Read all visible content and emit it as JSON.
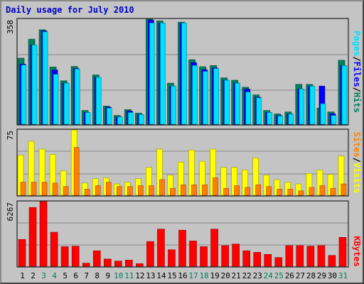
{
  "title": "Daily usage for July 2010",
  "colors": {
    "hits": "#00805c",
    "files": "#0000ff",
    "pages": "#00e0ff",
    "visits": "#ffff00",
    "sites": "#ff8000",
    "kbytes": "#ff0000",
    "weekend_day": "#00805c",
    "weekday": "#000000",
    "background": "#c4c4c4",
    "gridline": "#888888"
  },
  "side_labels": {
    "top": [
      "Pages",
      "/",
      "Files",
      "/",
      "Hits"
    ],
    "middle": [
      "Sites",
      "/",
      "Visits"
    ],
    "bottom": [
      "KBytes"
    ]
  },
  "chart_data": [
    {
      "type": "bar",
      "panel": "hits_files_pages",
      "categories": [
        "1",
        "2",
        "3",
        "4",
        "5",
        "6",
        "7",
        "8",
        "9",
        "10",
        "11",
        "12",
        "13",
        "14",
        "15",
        "16",
        "17",
        "18",
        "19",
        "20",
        "21",
        "22",
        "23",
        "24",
        "25",
        "26",
        "27",
        "28",
        "29",
        "30",
        "31"
      ],
      "ylim": [
        0,
        358
      ],
      "ytick_label": "358",
      "series": [
        {
          "name": "Hits",
          "values": [
            225,
            290,
            322,
            195,
            148,
            197,
            47,
            168,
            62,
            30,
            50,
            38,
            358,
            352,
            140,
            348,
            220,
            196,
            200,
            158,
            150,
            126,
            100,
            47,
            35,
            42,
            136,
            136,
            55,
            42,
            218
          ]
        },
        {
          "name": "Files",
          "values": [
            205,
            270,
            318,
            185,
            140,
            190,
            40,
            160,
            58,
            25,
            45,
            33,
            355,
            345,
            130,
            344,
            210,
            186,
            192,
            150,
            140,
            120,
            92,
            40,
            30,
            35,
            120,
            130,
            130,
            36,
            200
          ]
        },
        {
          "name": "Pages",
          "values": [
            202,
            270,
            315,
            170,
            140,
            188,
            40,
            160,
            55,
            25,
            40,
            33,
            345,
            345,
            130,
            345,
            200,
            180,
            190,
            150,
            140,
            110,
            90,
            40,
            28,
            35,
            120,
            130,
            70,
            30,
            200
          ]
        }
      ]
    },
    {
      "type": "bar",
      "panel": "visits_sites",
      "categories": [
        "1",
        "2",
        "3",
        "4",
        "5",
        "6",
        "7",
        "8",
        "9",
        "10",
        "11",
        "12",
        "13",
        "14",
        "15",
        "16",
        "17",
        "18",
        "19",
        "20",
        "21",
        "22",
        "23",
        "24",
        "25",
        "26",
        "27",
        "28",
        "29",
        "30",
        "31"
      ],
      "ylim": [
        0,
        75
      ],
      "ytick_label": "75",
      "series": [
        {
          "name": "Visits",
          "values": [
            46,
            62,
            53,
            47,
            28,
            75,
            14,
            19,
            20,
            13,
            15,
            19,
            32,
            53,
            23,
            38,
            52,
            39,
            53,
            32,
            32,
            29,
            43,
            23,
            18,
            15,
            13,
            25,
            29,
            24,
            45
          ]
        },
        {
          "name": "Sites",
          "values": [
            15,
            15,
            15,
            14,
            10,
            55,
            7,
            11,
            15,
            10,
            10,
            11,
            11,
            18,
            8,
            12,
            12,
            12,
            20,
            8,
            11,
            9,
            12,
            10,
            7,
            7,
            5,
            9,
            11,
            8,
            13
          ]
        }
      ]
    },
    {
      "type": "bar",
      "panel": "kbytes",
      "categories": [
        "1",
        "2",
        "3",
        "4",
        "5",
        "6",
        "7",
        "8",
        "9",
        "10",
        "11",
        "12",
        "13",
        "14",
        "15",
        "16",
        "17",
        "18",
        "19",
        "20",
        "21",
        "22",
        "23",
        "24",
        "25",
        "26",
        "27",
        "28",
        "29",
        "30",
        "31"
      ],
      "ylim": [
        0,
        6267
      ],
      "ytick_label": "6267",
      "series": [
        {
          "name": "KBytes",
          "values": [
            2600,
            5700,
            6267,
            3300,
            1900,
            1950,
            300,
            1500,
            700,
            500,
            600,
            250,
            2400,
            3600,
            1600,
            3500,
            2450,
            1900,
            3600,
            2000,
            2150,
            1500,
            1350,
            1150,
            850,
            2000,
            2000,
            1950,
            2000,
            1050,
            2800
          ]
        }
      ]
    }
  ]
}
